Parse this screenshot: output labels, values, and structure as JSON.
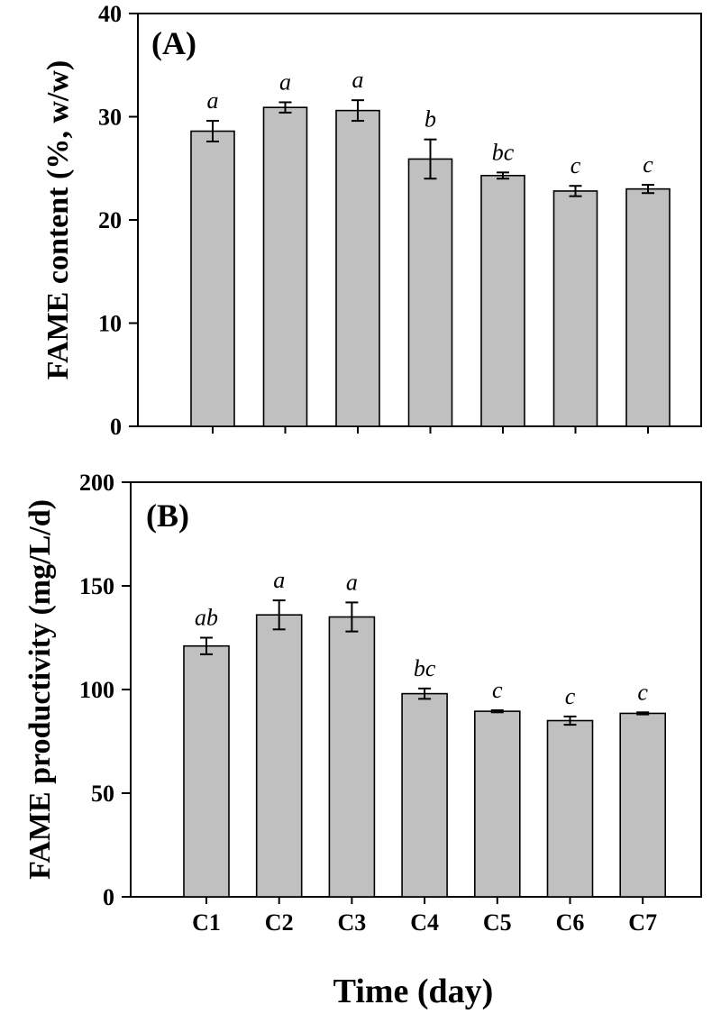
{
  "chart_data": [
    {
      "type": "bar",
      "panel": "(A)",
      "ylabel": "FAME content (%, w/w)",
      "xlabel": "",
      "ylim": [
        0,
        40
      ],
      "yticks": [
        0,
        10,
        20,
        30,
        40
      ],
      "categories": [
        "C1",
        "C2",
        "C3",
        "C4",
        "C5",
        "C6",
        "C7"
      ],
      "values": [
        28.6,
        30.9,
        30.6,
        25.9,
        24.3,
        22.8,
        23.0
      ],
      "errors": [
        1.0,
        0.5,
        1.0,
        1.9,
        0.3,
        0.5,
        0.4
      ],
      "significance": [
        "a",
        "a",
        "a",
        "b",
        "bc",
        "c",
        "c"
      ],
      "show_category_labels": false,
      "bar_color": "#c0c0c0"
    },
    {
      "type": "bar",
      "panel": "(B)",
      "ylabel": "FAME productivity (mg/L/d)",
      "xlabel": "Time (day)",
      "ylim": [
        0,
        200
      ],
      "yticks": [
        0,
        50,
        100,
        150,
        200
      ],
      "categories": [
        "C1",
        "C2",
        "C3",
        "C4",
        "C5",
        "C6",
        "C7"
      ],
      "values": [
        121,
        136,
        135,
        98,
        89.5,
        85,
        88.5
      ],
      "errors": [
        4,
        7,
        7,
        2.5,
        0.5,
        2,
        0.5
      ],
      "significance": [
        "ab",
        "a",
        "a",
        "bc",
        "c",
        "c",
        "c"
      ],
      "show_category_labels": true,
      "bar_color": "#c0c0c0"
    }
  ]
}
